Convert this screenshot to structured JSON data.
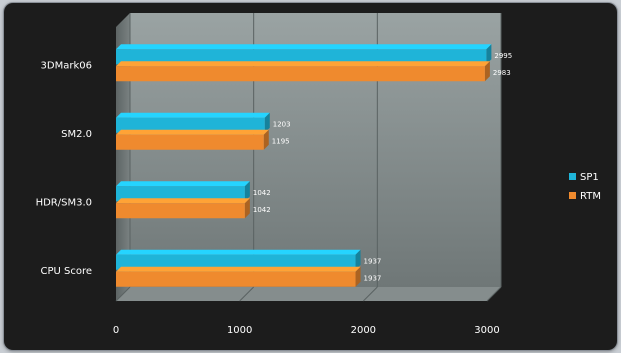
{
  "chart_data": {
    "type": "bar",
    "orientation": "horizontal",
    "three_d": true,
    "categories": [
      "3DMark06",
      "SM2.0",
      "HDR/SM3.0",
      "CPU Score"
    ],
    "series": [
      {
        "name": "SP1",
        "color": "#1fb4d8",
        "values": [
          2995,
          1203,
          1042,
          1937
        ]
      },
      {
        "name": "RTM",
        "color": "#ef8a2e",
        "values": [
          2983,
          1195,
          1042,
          1937
        ]
      }
    ],
    "value_labels": {
      "SP1": [
        "2995",
        "1203",
        "1042",
        "1937"
      ],
      "RTM": [
        "2983",
        "1195",
        "1042",
        "1937"
      ]
    },
    "xlim": [
      0,
      3000
    ],
    "xticks": [
      0,
      1000,
      2000,
      3000
    ],
    "xtick_labels": [
      "0",
      "1000",
      "2000",
      "3000"
    ],
    "grid": true,
    "legend_position": "right",
    "title": "",
    "xlabel": "",
    "ylabel": ""
  }
}
